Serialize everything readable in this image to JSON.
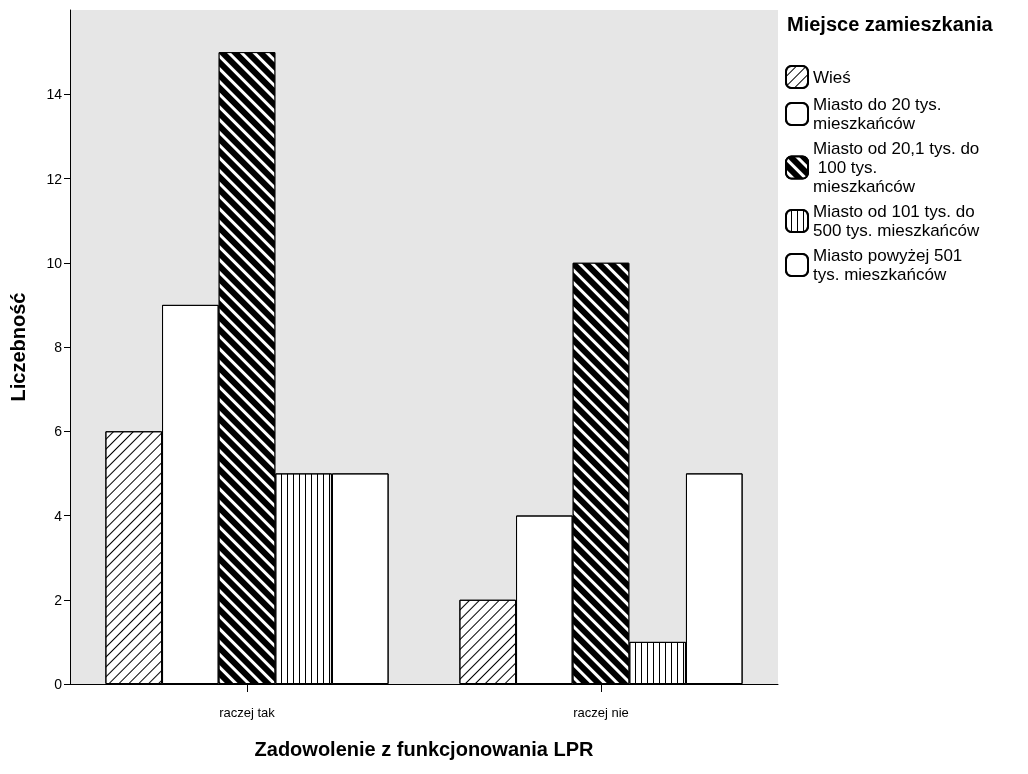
{
  "chart_data": {
    "type": "bar",
    "xlabel": "Zadowolenie z funkcjonowania LPR",
    "ylabel": "Liczebność",
    "legend_title": "Miejsce zamieszkania",
    "legend": "top right",
    "grid": false,
    "categories": [
      "raczej tak",
      "raczej nie"
    ],
    "ylim": [
      0,
      16
    ],
    "yticks": [
      0,
      2,
      4,
      6,
      8,
      10,
      12,
      14
    ],
    "series": [
      {
        "name": "Wieś",
        "color": "#ffffff",
        "values": [
          6,
          2
        ]
      },
      {
        "name": "Miasto do 20 tys. mieszkańców",
        "color": "#ffffff",
        "values": [
          9,
          4
        ]
      },
      {
        "name": "Miasto od 20,1 tys. do 100 tys. mieszkańców",
        "color": "#000000",
        "values": [
          15,
          10
        ]
      },
      {
        "name": "Miasto od 101 tys. do 500 tys. mieszkańców",
        "color": "#ffffff",
        "values": [
          5,
          1
        ]
      },
      {
        "name": "Miasto powyżej 501 tys. mieszkańców",
        "color": "#ffffff",
        "values": [
          5,
          5
        ]
      }
    ]
  }
}
